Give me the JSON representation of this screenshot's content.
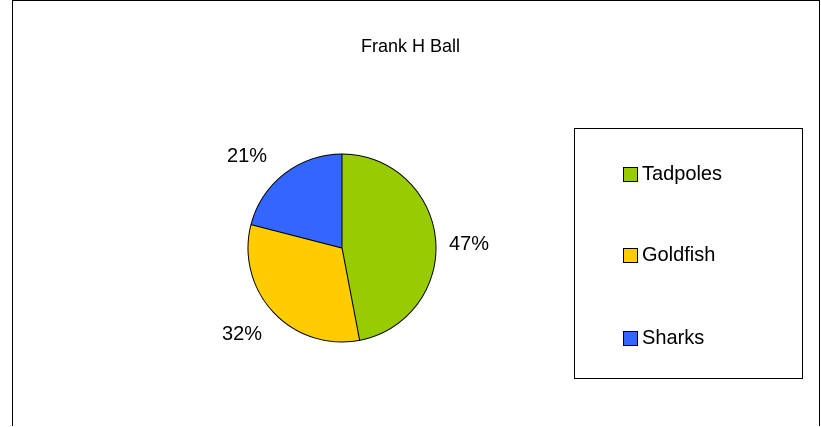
{
  "chart_data": {
    "type": "pie",
    "title": "Frank H Ball",
    "categories": [
      "Tadpoles",
      "Goldfish",
      "Sharks"
    ],
    "values": [
      47,
      32,
      21
    ],
    "value_labels": [
      "47%",
      "32%",
      "21%"
    ],
    "colors": [
      "#99CC00",
      "#FFCC00",
      "#3366FF"
    ],
    "legend_position": "right"
  }
}
